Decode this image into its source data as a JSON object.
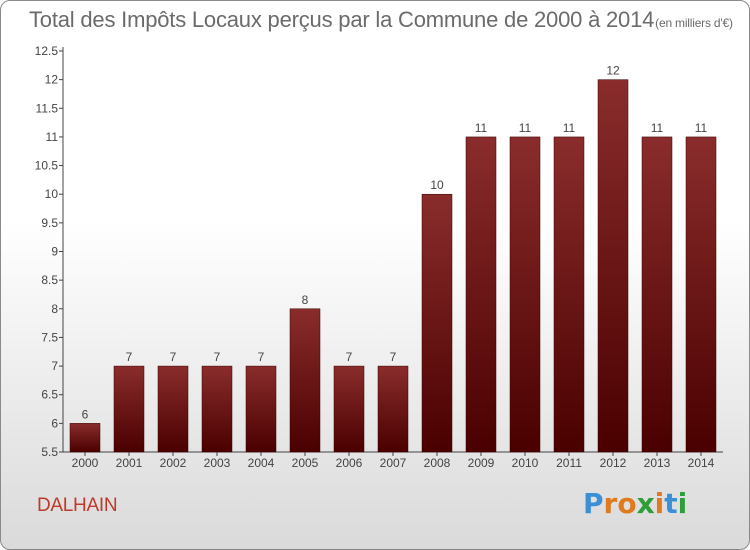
{
  "header": {
    "title": "Total des Impôts Locaux perçus par la Commune de 2000 à 2014",
    "unit": "(en milliers d'€)"
  },
  "footer": {
    "commune": "DALHAIN",
    "logo_letters": [
      "P",
      "r",
      "o",
      "x",
      "i",
      "t",
      "i"
    ],
    "logo_colors": [
      "#3a8fd6",
      "#e07a1f",
      "#e07a1f",
      "#2e9e3a",
      "#e07a1f",
      "#3a8fd6",
      "#2e9e3a"
    ]
  },
  "colors": {
    "bar_top": "#8a2c2c",
    "bar_bottom": "#4a0000",
    "axis": "#444444",
    "title": "#6b6b6b",
    "commune": "#c0392b"
  },
  "chart_data": {
    "type": "bar",
    "title": "Total des Impôts Locaux perçus par la Commune de 2000 à 2014",
    "xlabel": "",
    "ylabel": "",
    "categories": [
      "2000",
      "2001",
      "2002",
      "2003",
      "2004",
      "2005",
      "2006",
      "2007",
      "2008",
      "2009",
      "2010",
      "2011",
      "2012",
      "2013",
      "2014"
    ],
    "values": [
      6,
      7,
      7,
      7,
      7,
      8,
      7,
      7,
      10,
      11,
      11,
      11,
      12,
      11,
      11
    ],
    "ylim": [
      5.5,
      12.5
    ],
    "yticks": [
      5.5,
      6,
      6.5,
      7,
      7.5,
      8,
      8.5,
      9,
      9.5,
      10,
      10.5,
      11,
      11.5,
      12,
      12.5
    ],
    "ytick_labels": [
      "5.5",
      "6",
      "6.5",
      "7",
      "7.5",
      "8",
      "8.5",
      "9",
      "9.5",
      "10",
      "10.5",
      "11",
      "11.5",
      "12",
      "12.5"
    ],
    "grid": false
  }
}
